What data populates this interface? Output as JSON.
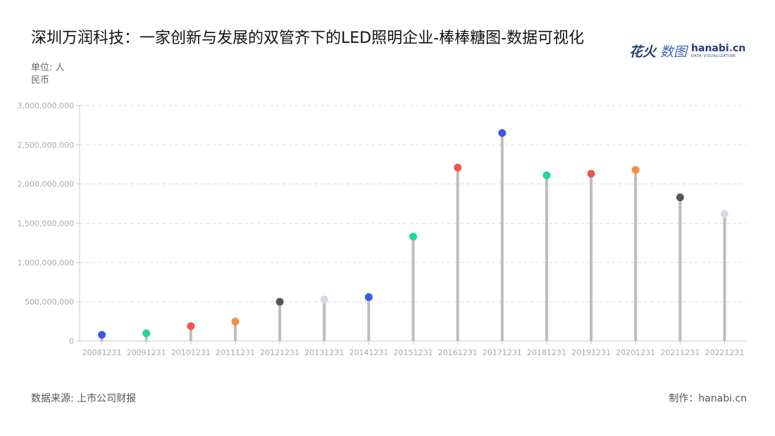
{
  "title": "深圳万润科技：一家创新与发展的双管齐下的LED照明企业-棒棒糖图-数据可视化",
  "unit_label": "单位: 人民币",
  "logo": {
    "cn": "花火",
    "cn_sub": "数图",
    "en_pre": "hanabi",
    "en_dot": ".",
    "en_post": "cn",
    "en_sub": "DATA VISUALIZATION"
  },
  "source": "数据来源: 上市公司财报",
  "maker": "制作：hanabi.cn",
  "chart_data": {
    "type": "lollipop",
    "title": "深圳万润科技：一家创新与发展的双管齐下的LED照明企业-棒棒糖图-数据可视化",
    "ylabel": "单位: 人民币",
    "ylim": [
      0,
      3000000000
    ],
    "yticks": [
      0,
      500000000,
      1000000000,
      1500000000,
      2000000000,
      2500000000,
      3000000000
    ],
    "ytick_labels": [
      "0",
      "500,000,000",
      "1,000,000,000",
      "1,500,000,000",
      "2,000,000,000",
      "2,500,000,000",
      "3,000,000,000"
    ],
    "grid": true,
    "categories": [
      "20081231",
      "20091231",
      "20101231",
      "20111231",
      "20121231",
      "20131231",
      "20141231",
      "20151231",
      "20161231",
      "20171231",
      "20181231",
      "20191231",
      "20201231",
      "20211231",
      "20221231"
    ],
    "values": [
      80000000,
      100000000,
      190000000,
      250000000,
      500000000,
      530000000,
      560000000,
      1330000000,
      2210000000,
      2650000000,
      2110000000,
      2130000000,
      2180000000,
      1830000000,
      1620000000
    ],
    "colors": [
      "#3a59e0",
      "#1fd6a0",
      "#f0554f",
      "#f28f4a",
      "#55555f",
      "#d8dbe6",
      "#3a59e0",
      "#1fd6a0",
      "#f0554f",
      "#3a59e0",
      "#1fd6a0",
      "#f0554f",
      "#f28f4a",
      "#55555f",
      "#d8dbe6"
    ],
    "stem_color": "#bdbdbd",
    "grid_color": "#dddddd",
    "axis_color": "#c8c8c8",
    "tick_color": "#aaaaaa"
  }
}
